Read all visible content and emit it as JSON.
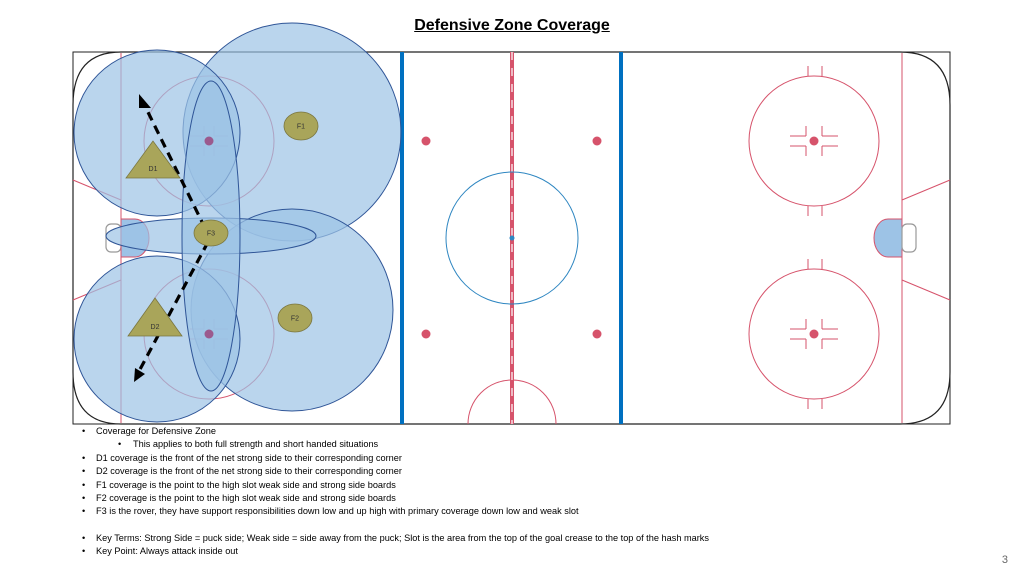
{
  "title": "Defensive Zone Coverage",
  "players": [
    {
      "id": "F1",
      "label": "F1",
      "shape": "circle"
    },
    {
      "id": "D1",
      "label": "D1",
      "shape": "triangle"
    },
    {
      "id": "F3",
      "label": "F3",
      "shape": "circle"
    },
    {
      "id": "F2",
      "label": "F2",
      "shape": "circle"
    },
    {
      "id": "D2",
      "label": "D2",
      "shape": "triangle"
    }
  ],
  "notes": [
    {
      "text": "Coverage for Defensive Zone",
      "level": 1
    },
    {
      "text": "This applies to both full strength and short handed situations",
      "level": 2
    },
    {
      "text": "D1 coverage is the front of the net strong side to their corresponding corner",
      "level": 1
    },
    {
      "text": "D2 coverage is the front of the net strong side to their corresponding corner",
      "level": 1
    },
    {
      "text": "F1 coverage is the point to the high slot weak side and strong side boards",
      "level": 1
    },
    {
      "text": "F2 coverage is the point to the high slot weak side and strong side boards",
      "level": 1
    },
    {
      "text": "F3 is the rover, they have support responsibilities down low and up high with primary coverage down low and weak slot",
      "level": 1
    }
  ],
  "key_notes": [
    {
      "text": "Key Terms:  Strong Side = puck side; Weak side = side away from the puck; Slot is the area from the top of the goal crease to the top of the hash marks",
      "level": 1
    },
    {
      "text": "Key Point:  Always attack inside out",
      "level": 1
    }
  ],
  "page_number": "3",
  "colors": {
    "coverage_fill": "#9dc3e6",
    "coverage_stroke": "#2f5597",
    "player_fill": "#a9a55a",
    "rink_red": "#d6536b",
    "blue_line": "#0070c0",
    "center_circle": "#2e86c1"
  }
}
